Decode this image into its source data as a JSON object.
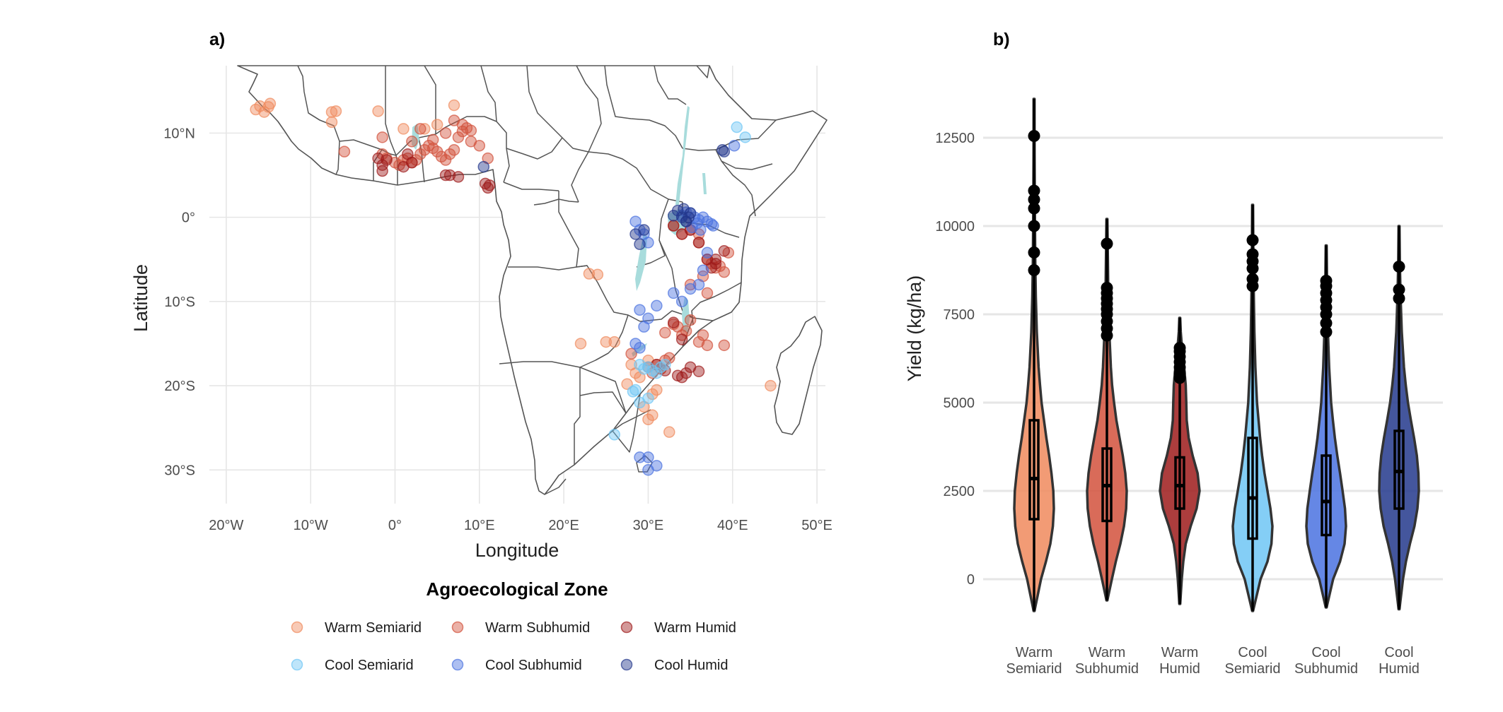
{
  "chart_data": [
    {
      "type": "scatter",
      "panel_label": "a)",
      "xlabel": "Longitude",
      "ylabel": "Latitude",
      "xlim": [
        -22,
        51
      ],
      "ylim": [
        -34,
        18
      ],
      "x_ticks": [
        -20,
        -10,
        0,
        10,
        20,
        30,
        40,
        50
      ],
      "x_tick_labels": [
        "20°W",
        "10°W",
        "0°",
        "10°E",
        "20°E",
        "30°E",
        "40°E",
        "50°E"
      ],
      "y_ticks": [
        10,
        0,
        -10,
        -20,
        -30
      ],
      "y_tick_labels": [
        "10°N",
        "0°",
        "10°S",
        "20°S",
        "30°S"
      ],
      "grid": true,
      "legend": {
        "title": "Agroecological Zone",
        "placement": "bottom",
        "entries": [
          {
            "label": "Warm Semiarid",
            "color": "#F08A5D"
          },
          {
            "label": "Warm Subhumid",
            "color": "#D2513C"
          },
          {
            "label": "Warm Humid",
            "color": "#9E1B1B"
          },
          {
            "label": "Cool Semiarid",
            "color": "#6EC6F5"
          },
          {
            "label": "Cool Subhumid",
            "color": "#4A72E0"
          },
          {
            "label": "Cool Humid",
            "color": "#23388C"
          }
        ]
      },
      "series": [
        {
          "name": "Warm Semiarid",
          "x": [
            -16.5,
            -16,
            -15.5,
            -15,
            -14.8,
            -7.5,
            -7,
            -7.5,
            -2,
            1,
            7,
            3.5,
            5,
            23,
            24,
            22,
            25,
            26,
            28,
            28.5,
            29,
            30,
            30.5,
            31,
            31.5,
            27.5,
            29.5,
            30,
            30.5,
            32.5,
            44.5
          ],
          "y": [
            12.8,
            13.2,
            12.5,
            13.1,
            13.5,
            12.5,
            12.6,
            11.3,
            12.6,
            10.5,
            13.3,
            10.5,
            11,
            -6.7,
            -6.8,
            -15,
            -14.8,
            -14.8,
            -17.5,
            -18.5,
            -19,
            -17,
            -21,
            -20.5,
            -18,
            -19.8,
            -22.5,
            -24,
            -23.5,
            -25.5,
            -20
          ]
        },
        {
          "name": "Warm Subhumid",
          "x": [
            -6,
            -1.5,
            -1,
            0,
            0.5,
            1,
            1.5,
            2,
            2.5,
            3,
            3.5,
            4,
            4.5,
            5,
            5.5,
            6,
            6.5,
            7,
            7.5,
            8,
            8.5,
            9,
            7,
            8,
            9,
            10,
            11,
            6,
            2,
            -1.5,
            3,
            4.5,
            36,
            37,
            37.5,
            38,
            38.5,
            39,
            39.5,
            33,
            34,
            35,
            36,
            35,
            36.5,
            37,
            32,
            33,
            33.5,
            34,
            34.5,
            35,
            36,
            36.5,
            37,
            39,
            28,
            30,
            30.5,
            31,
            31.5,
            32,
            32.5
          ],
          "y": [
            7.8,
            7.5,
            7,
            6.5,
            6.2,
            6.8,
            7,
            6.5,
            6.8,
            7.5,
            8,
            8.5,
            8.2,
            7.8,
            7.2,
            6.8,
            7.5,
            8,
            9.5,
            10.2,
            10.6,
            10.3,
            11.5,
            11,
            9,
            8.5,
            7,
            10,
            9,
            9.5,
            10.5,
            9.2,
            -3,
            -5,
            -5.5,
            -6,
            -5.8,
            -6.5,
            -4.2,
            -1,
            -2,
            -1.5,
            -2,
            -8,
            -7,
            -9,
            -13.7,
            -12.7,
            -13,
            -14,
            -13.5,
            -12.2,
            -14.8,
            -14,
            -15.2,
            -15.2,
            -16.2,
            -17.8,
            -18.5,
            -17.5,
            -18,
            -17,
            -16.7
          ]
        },
        {
          "name": "Warm Humid",
          "x": [
            -2,
            -1.5,
            -1,
            1,
            2,
            6,
            7.5,
            11,
            11.2,
            10.7,
            -1.5,
            6.5,
            1.5,
            33,
            34,
            35,
            36,
            37,
            37.5,
            38,
            31,
            32,
            33.5,
            34,
            34.5,
            35,
            36,
            38,
            39,
            34,
            33
          ],
          "y": [
            7,
            6.2,
            6.8,
            6,
            6.5,
            5,
            4.8,
            3.5,
            3.8,
            4,
            5.5,
            5,
            7.5,
            -1,
            -2,
            -1.5,
            -3,
            -5,
            -6,
            -5.5,
            -17.5,
            -18.2,
            -18.8,
            -19,
            -18.5,
            -17.8,
            -18.3,
            -5,
            -4,
            -14.5,
            -12.5
          ]
        },
        {
          "name": "Cool Semiarid",
          "x": [
            40.5,
            41.5,
            29,
            29.5,
            30,
            30.5,
            31,
            31.5,
            32,
            29,
            30,
            28.5,
            28.2,
            26
          ],
          "y": [
            10.7,
            9.5,
            -17.5,
            -18,
            -17.8,
            -18.2,
            -18.5,
            -17.8,
            -17.5,
            -22,
            -21.5,
            -20.5,
            -20.7,
            -25.8
          ]
        },
        {
          "name": "Cool Subhumid",
          "x": [
            34,
            34.5,
            35,
            35.5,
            36,
            36.5,
            37,
            37.5,
            37.7,
            35.2,
            35.8,
            36.2,
            29,
            29.5,
            30,
            28.5,
            37,
            36.5,
            36,
            35,
            34,
            29,
            30,
            31,
            33,
            28.5,
            29,
            29.5,
            30,
            31,
            29,
            30,
            40.2
          ],
          "y": [
            0.2,
            0.6,
            0.5,
            0,
            -0.3,
            0,
            -0.5,
            -0.8,
            -1,
            -1.2,
            -0.7,
            -1.5,
            -1.5,
            -2,
            -3,
            -0.5,
            -4.2,
            -6.3,
            -8,
            -8.5,
            -10,
            -11,
            -12,
            -10.5,
            -9,
            -15,
            -15.5,
            -13,
            -30,
            -29.5,
            -28.5,
            -28.5,
            8.5
          ]
        },
        {
          "name": "Cool Humid",
          "x": [
            34,
            34.5,
            35,
            33.5,
            34.2,
            34.8,
            33,
            10.5,
            39,
            38.8,
            34.5,
            28.5,
            29,
            29.5
          ],
          "y": [
            0,
            -0.5,
            0.5,
            0.8,
            1,
            0,
            0.2,
            6,
            7.8,
            8,
            -0.5,
            -2,
            -3.2,
            -1.5
          ]
        }
      ]
    },
    {
      "type": "violin",
      "panel_label": "b)",
      "xlabel": "",
      "ylabel": "Yield (kg/ha)",
      "ylim": [
        -1200,
        14200
      ],
      "y_ticks": [
        0,
        2500,
        5000,
        7500,
        10000,
        12500
      ],
      "y_tick_labels": [
        "0",
        "2500",
        "5000",
        "7500",
        "10000",
        "12500"
      ],
      "grid": true,
      "categories": [
        [
          "Warm",
          "Semiarid"
        ],
        [
          "Warm",
          "Subhumid"
        ],
        [
          "Warm",
          "Humid"
        ],
        [
          "Cool",
          "Semiarid"
        ],
        [
          "Cool",
          "Subhumid"
        ],
        [
          "Cool",
          "Humid"
        ]
      ],
      "colors": [
        "#F08A5D",
        "#D2513C",
        "#9E1B1B",
        "#6EC6F5",
        "#4A72E0",
        "#23388C"
      ],
      "stats": [
        {
          "min": -900,
          "q1": 1700,
          "median": 2850,
          "q3": 4500,
          "max": 13600,
          "outliers": [
            8750,
            9250,
            10000,
            10500,
            10750,
            11000,
            12550
          ],
          "density": [
            [
              -900,
              0.02
            ],
            [
              0,
              0.35
            ],
            [
              500,
              0.6
            ],
            [
              1000,
              0.82
            ],
            [
              1500,
              0.95
            ],
            [
              2000,
              1.0
            ],
            [
              2500,
              0.97
            ],
            [
              3000,
              0.88
            ],
            [
              3500,
              0.76
            ],
            [
              4000,
              0.62
            ],
            [
              4500,
              0.5
            ],
            [
              5000,
              0.38
            ],
            [
              5500,
              0.3
            ],
            [
              6000,
              0.23
            ],
            [
              7000,
              0.14
            ],
            [
              8000,
              0.09
            ],
            [
              9000,
              0.06
            ],
            [
              10500,
              0.04
            ],
            [
              12000,
              0.025
            ],
            [
              13600,
              0.02
            ]
          ]
        },
        {
          "min": -600,
          "q1": 1650,
          "median": 2650,
          "q3": 3700,
          "max": 10200,
          "outliers": [
            6900,
            7100,
            7300,
            7500,
            7650,
            7800,
            7950,
            8100,
            8250,
            9500
          ],
          "density": [
            [
              -600,
              0.02
            ],
            [
              0,
              0.25
            ],
            [
              500,
              0.45
            ],
            [
              1000,
              0.68
            ],
            [
              1500,
              0.86
            ],
            [
              2000,
              0.97
            ],
            [
              2500,
              1.0
            ],
            [
              3000,
              0.93
            ],
            [
              3500,
              0.8
            ],
            [
              4000,
              0.64
            ],
            [
              4500,
              0.48
            ],
            [
              5000,
              0.36
            ],
            [
              5500,
              0.26
            ],
            [
              6000,
              0.2
            ],
            [
              7000,
              0.12
            ],
            [
              8000,
              0.07
            ],
            [
              9000,
              0.05
            ],
            [
              10200,
              0.02
            ]
          ]
        },
        {
          "min": -700,
          "q1": 2000,
          "median": 2650,
          "q3": 3450,
          "max": 7400,
          "outliers": [
            5700,
            5850,
            6000,
            6150,
            6300,
            6450,
            6550
          ],
          "density": [
            [
              -700,
              0.02
            ],
            [
              0,
              0.1
            ],
            [
              500,
              0.18
            ],
            [
              1000,
              0.3
            ],
            [
              1500,
              0.55
            ],
            [
              2000,
              0.85
            ],
            [
              2500,
              1.0
            ],
            [
              3000,
              0.9
            ],
            [
              3500,
              0.65
            ],
            [
              4000,
              0.45
            ],
            [
              4500,
              0.35
            ],
            [
              5000,
              0.33
            ],
            [
              5500,
              0.3
            ],
            [
              6000,
              0.22
            ],
            [
              6500,
              0.12
            ],
            [
              7000,
              0.05
            ],
            [
              7400,
              0.02
            ]
          ]
        },
        {
          "min": -900,
          "q1": 1150,
          "median": 2300,
          "q3": 4000,
          "max": 10600,
          "outliers": [
            8300,
            8500,
            8800,
            9000,
            9200,
            9600
          ],
          "density": [
            [
              -900,
              0.02
            ],
            [
              0,
              0.4
            ],
            [
              500,
              0.75
            ],
            [
              1000,
              0.95
            ],
            [
              1500,
              1.0
            ],
            [
              2000,
              0.9
            ],
            [
              2500,
              0.75
            ],
            [
              3000,
              0.6
            ],
            [
              3500,
              0.48
            ],
            [
              4000,
              0.38
            ],
            [
              4500,
              0.3
            ],
            [
              5000,
              0.22
            ],
            [
              6000,
              0.14
            ],
            [
              7000,
              0.09
            ],
            [
              8000,
              0.06
            ],
            [
              9000,
              0.04
            ],
            [
              10600,
              0.02
            ]
          ]
        },
        {
          "min": -800,
          "q1": 1250,
          "median": 2200,
          "q3": 3500,
          "max": 9450,
          "outliers": [
            7000,
            7250,
            7500,
            7700,
            7900,
            8100,
            8300,
            8450
          ],
          "density": [
            [
              -800,
              0.02
            ],
            [
              0,
              0.35
            ],
            [
              500,
              0.7
            ],
            [
              1000,
              0.93
            ],
            [
              1500,
              1.0
            ],
            [
              2000,
              0.95
            ],
            [
              2500,
              0.83
            ],
            [
              3000,
              0.7
            ],
            [
              3500,
              0.56
            ],
            [
              4000,
              0.44
            ],
            [
              4500,
              0.34
            ],
            [
              5000,
              0.25
            ],
            [
              6000,
              0.15
            ],
            [
              7000,
              0.09
            ],
            [
              8000,
              0.05
            ],
            [
              9450,
              0.02
            ]
          ]
        },
        {
          "min": -850,
          "q1": 2000,
          "median": 3050,
          "q3": 4200,
          "max": 10000,
          "outliers": [
            7950,
            8200,
            8850
          ],
          "density": [
            [
              -850,
              0.02
            ],
            [
              0,
              0.2
            ],
            [
              500,
              0.35
            ],
            [
              1000,
              0.55
            ],
            [
              1500,
              0.78
            ],
            [
              2000,
              0.93
            ],
            [
              2500,
              1.0
            ],
            [
              3000,
              0.98
            ],
            [
              3500,
              0.9
            ],
            [
              4000,
              0.76
            ],
            [
              4500,
              0.6
            ],
            [
              5000,
              0.45
            ],
            [
              5500,
              0.34
            ],
            [
              6000,
              0.25
            ],
            [
              7000,
              0.14
            ],
            [
              8000,
              0.08
            ],
            [
              9000,
              0.04
            ],
            [
              10000,
              0.02
            ]
          ]
        }
      ]
    }
  ]
}
